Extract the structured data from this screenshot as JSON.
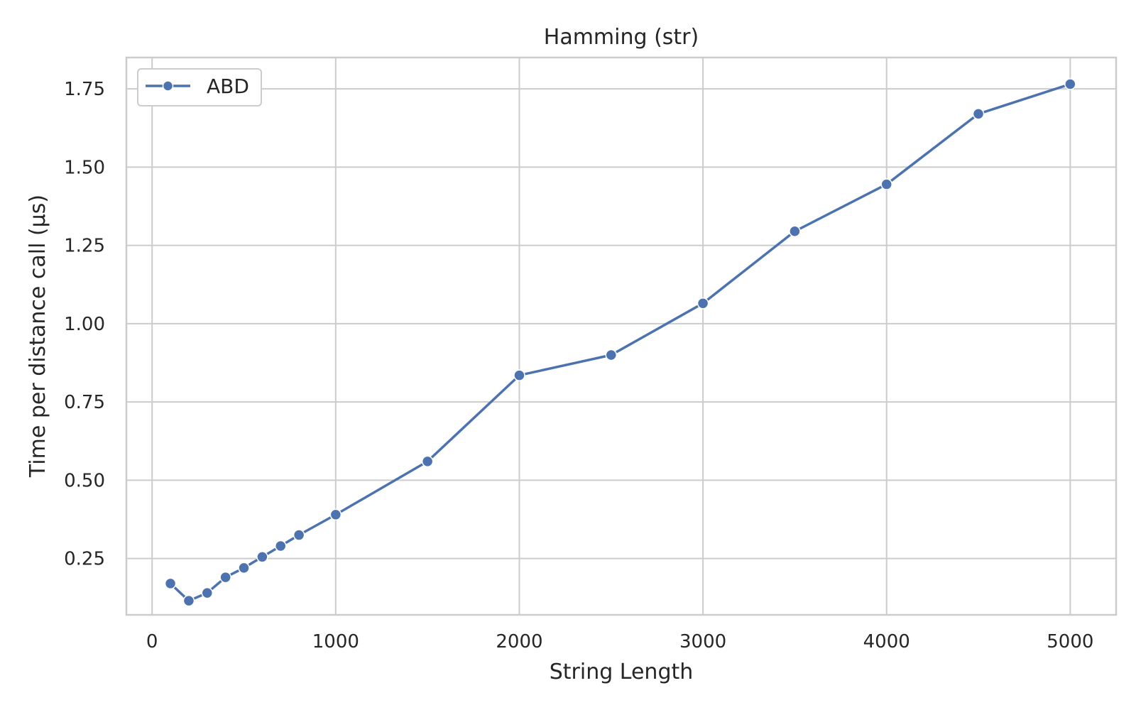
{
  "chart_data": {
    "type": "line",
    "title": "Hamming (str)",
    "xlabel": "String Length",
    "ylabel": "Time per distance call (μs)",
    "xlim": [
      -140,
      5250
    ],
    "ylim": [
      0.07,
      1.85
    ],
    "x_ticks": [
      0,
      1000,
      2000,
      3000,
      4000,
      5000
    ],
    "x_tick_labels": [
      "0",
      "1000",
      "2000",
      "3000",
      "4000",
      "5000"
    ],
    "y_ticks": [
      0.25,
      0.5,
      0.75,
      1.0,
      1.25,
      1.5,
      1.75
    ],
    "y_tick_labels": [
      "0.25",
      "0.50",
      "0.75",
      "1.00",
      "1.25",
      "1.50",
      "1.75"
    ],
    "grid": true,
    "legend_position": "top-left",
    "colors": {
      "series": "#4c72b0",
      "grid": "#cccccc",
      "text": "#262626"
    },
    "series": [
      {
        "name": "ABD",
        "marker": "circle",
        "x": [
          100,
          200,
          300,
          400,
          500,
          600,
          700,
          800,
          1000,
          1500,
          2000,
          2500,
          3000,
          3500,
          4000,
          4500,
          5000
        ],
        "y": [
          0.17,
          0.115,
          0.14,
          0.19,
          0.22,
          0.255,
          0.29,
          0.325,
          0.39,
          0.56,
          0.835,
          0.9,
          1.065,
          1.295,
          1.445,
          1.67,
          1.765
        ]
      }
    ]
  }
}
